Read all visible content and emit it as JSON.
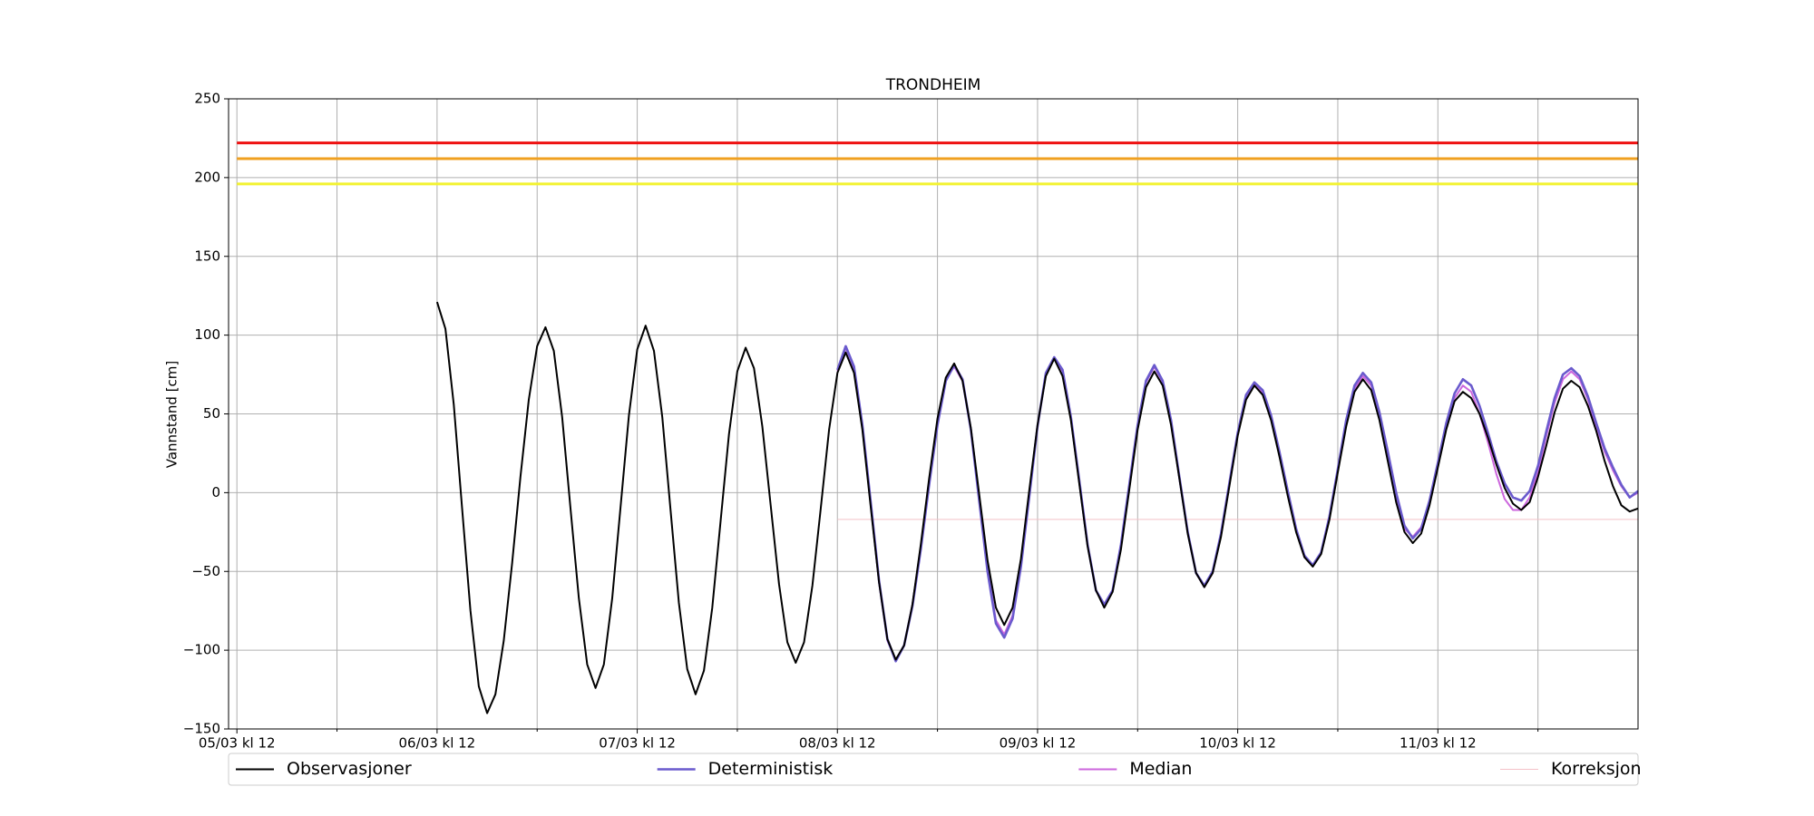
{
  "chart_data": {
    "type": "line",
    "title": "TRONDHEIM",
    "y_label": "Vannstand [cm]",
    "xlim": [
      -1,
      168
    ],
    "xticks": [
      {
        "value": 0,
        "label": "05/03 kl 12"
      },
      {
        "value": 24,
        "label": "06/03 kl 12"
      },
      {
        "value": 48,
        "label": "07/03 kl 12"
      },
      {
        "value": 72,
        "label": "08/03 kl 12"
      },
      {
        "value": 96,
        "label": "09/03 kl 12"
      },
      {
        "value": 120,
        "label": "10/03 kl 12"
      },
      {
        "value": 144,
        "label": "11/03 kl 12"
      }
    ],
    "xminor_ticks": [
      12,
      36,
      60,
      84,
      108,
      132,
      156
    ],
    "ylim": [
      -150,
      250
    ],
    "yticks": [
      {
        "value": -150,
        "label": "−150"
      },
      {
        "value": -100,
        "label": "−100"
      },
      {
        "value": -50,
        "label": "−50"
      },
      0,
      50,
      100,
      150,
      200,
      250
    ],
    "grid": true,
    "legend": "bottom",
    "hlines": [
      {
        "value": 222,
        "color": "#ee1111",
        "x0": 0
      },
      {
        "value": 212,
        "color": "#f0a020",
        "x0": 0
      },
      {
        "value": 196,
        "color": "#f2f230",
        "x0": 0
      }
    ],
    "series": [
      {
        "name": "Observasjoner",
        "color": "#000000",
        "width": 2,
        "x": [
          24,
          25,
          26,
          27,
          28,
          29,
          30,
          31,
          32,
          33,
          34,
          35,
          36,
          37,
          38,
          39,
          40,
          41,
          42,
          43,
          44,
          45,
          46,
          47,
          48,
          49,
          50,
          51,
          52,
          53,
          54,
          55,
          56,
          57,
          58,
          59,
          60,
          61,
          62,
          63,
          64,
          65,
          66,
          67,
          68,
          69,
          70,
          71,
          72,
          73,
          74,
          75,
          76,
          77,
          78,
          79,
          80,
          81,
          82,
          83,
          84,
          85,
          86,
          87,
          88,
          89,
          90,
          91,
          92,
          93,
          94,
          95,
          96,
          97,
          98,
          99,
          100,
          101,
          102,
          103,
          104,
          105,
          106,
          107,
          108,
          109,
          110,
          111,
          112,
          113,
          114,
          115,
          116,
          117,
          118,
          119,
          120,
          121,
          122,
          123,
          124,
          125,
          126,
          127,
          128,
          129,
          130,
          131,
          132,
          133,
          134,
          135,
          136,
          137,
          138,
          139,
          140,
          141,
          142,
          143,
          144,
          145,
          146,
          147,
          148,
          149,
          150,
          151,
          152,
          153,
          154,
          155,
          156,
          157,
          158,
          159,
          160,
          161,
          162,
          163,
          164,
          165,
          166,
          167,
          168
        ],
        "values": [
          121,
          104,
          56,
          -10,
          -75,
          -123,
          -140,
          -128,
          -94,
          -45,
          10,
          59,
          93,
          105,
          90,
          48,
          -10,
          -67,
          -109,
          -124,
          -109,
          -67,
          -9,
          49,
          91,
          106,
          90,
          48,
          -11,
          -70,
          -112,
          -128,
          -113,
          -73,
          -18,
          37,
          77,
          92,
          79,
          42,
          -8,
          -58,
          -95,
          -108,
          -95,
          -59,
          -10,
          40,
          76,
          89,
          76,
          40,
          -9,
          -57,
          -93,
          -106,
          -97,
          -71,
          -33,
          9,
          47,
          73,
          82,
          71,
          41,
          -1,
          -43,
          -73,
          -84,
          -73,
          -42,
          1,
          43,
          74,
          85,
          74,
          46,
          6,
          -34,
          -62,
          -73,
          -63,
          -36,
          2,
          40,
          67,
          77,
          68,
          43,
          9,
          -26,
          -51,
          -60,
          -51,
          -28,
          4,
          36,
          59,
          68,
          62,
          46,
          23,
          -2,
          -25,
          -41,
          -47,
          -39,
          -17,
          13,
          42,
          64,
          72,
          65,
          46,
          20,
          -6,
          -25,
          -32,
          -26,
          -8,
          16,
          40,
          58,
          64,
          60,
          50,
          35,
          18,
          3,
          -7,
          -11,
          -6,
          10,
          30,
          51,
          66,
          71,
          67,
          55,
          39,
          20,
          4,
          -8,
          -12,
          -10
        ]
      },
      {
        "name": "Deterministisk",
        "color": "#6a5acd",
        "width": 2.6,
        "x": [
          72,
          73,
          74,
          75,
          76,
          77,
          78,
          79,
          80,
          81,
          82,
          83,
          84,
          85,
          86,
          87,
          88,
          89,
          90,
          91,
          92,
          93,
          94,
          95,
          96,
          97,
          98,
          99,
          100,
          101,
          102,
          103,
          104,
          105,
          106,
          107,
          108,
          109,
          110,
          111,
          112,
          113,
          114,
          115,
          116,
          117,
          118,
          119,
          120,
          121,
          122,
          123,
          124,
          125,
          126,
          127,
          128,
          129,
          130,
          131,
          132,
          133,
          134,
          135,
          136,
          137,
          138,
          139,
          140,
          141,
          142,
          143,
          144,
          145,
          146,
          147,
          148,
          149,
          150,
          151,
          152,
          153,
          154,
          155,
          156,
          157,
          158,
          159,
          160,
          161,
          162,
          163,
          164,
          165,
          166,
          167,
          168
        ],
        "values": [
          78,
          93,
          80,
          43,
          -6,
          -56,
          -93,
          -107,
          -97,
          -72,
          -36,
          5,
          43,
          71,
          81,
          72,
          40,
          -5,
          -50,
          -83,
          -92,
          -80,
          -47,
          -3,
          42,
          76,
          86,
          78,
          48,
          8,
          -33,
          -62,
          -71,
          -62,
          -33,
          5,
          43,
          71,
          81,
          71,
          46,
          10,
          -25,
          -51,
          -59,
          -50,
          -26,
          6,
          38,
          62,
          70,
          65,
          49,
          26,
          1,
          -23,
          -40,
          -46,
          -38,
          -15,
          15,
          46,
          68,
          76,
          70,
          51,
          26,
          0,
          -21,
          -29,
          -23,
          -5,
          19,
          44,
          63,
          72,
          68,
          55,
          38,
          20,
          6,
          -3,
          -5,
          1,
          17,
          39,
          60,
          75,
          79,
          74,
          61,
          44,
          28,
          16,
          5,
          -3,
          1
        ]
      },
      {
        "name": "Median",
        "color": "#cc66dd",
        "width": 2,
        "x": [
          72,
          73,
          74,
          75,
          76,
          77,
          78,
          79,
          80,
          81,
          82,
          83,
          84,
          85,
          86,
          87,
          88,
          89,
          90,
          91,
          92,
          93,
          94,
          95,
          96,
          97,
          98,
          99,
          100,
          101,
          102,
          103,
          104,
          105,
          106,
          107,
          108,
          109,
          110,
          111,
          112,
          113,
          114,
          115,
          116,
          117,
          118,
          119,
          120,
          121,
          122,
          123,
          124,
          125,
          126,
          127,
          128,
          129,
          130,
          131,
          132,
          133,
          134,
          135,
          136,
          137,
          138,
          139,
          140,
          141,
          142,
          143,
          144,
          145,
          146,
          147,
          148,
          149,
          150,
          151,
          152,
          153,
          154,
          155,
          156,
          157,
          158,
          159,
          160,
          161,
          162,
          163,
          164,
          165,
          166,
          167,
          168
        ],
        "values": [
          77,
          92,
          79,
          42,
          -7,
          -57,
          -94,
          -106,
          -97,
          -71,
          -35,
          6,
          44,
          72,
          80,
          71,
          40,
          -4,
          -48,
          -81,
          -90,
          -78,
          -45,
          -2,
          42,
          75,
          85,
          77,
          47,
          7,
          -33,
          -62,
          -72,
          -62,
          -34,
          4,
          42,
          70,
          80,
          70,
          45,
          9,
          -25,
          -51,
          -60,
          -51,
          -27,
          5,
          37,
          61,
          69,
          63,
          47,
          24,
          -1,
          -24,
          -41,
          -46,
          -38,
          -16,
          14,
          44,
          66,
          74,
          68,
          49,
          24,
          -2,
          -23,
          -28,
          -22,
          -6,
          18,
          42,
          60,
          68,
          64,
          50,
          32,
          12,
          -4,
          -11,
          -11,
          -3,
          13,
          36,
          57,
          72,
          77,
          72,
          59,
          42,
          26,
          14,
          4,
          -3,
          0
        ]
      },
      {
        "name": "Korreksjon",
        "color": "#f4c0c8",
        "width": 1,
        "x": [
          72,
          84,
          96,
          108,
          120,
          132,
          144,
          156,
          168
        ],
        "values": [
          -17,
          -17,
          -17,
          -17,
          -17,
          -17,
          -17,
          -17,
          -17
        ]
      }
    ]
  }
}
